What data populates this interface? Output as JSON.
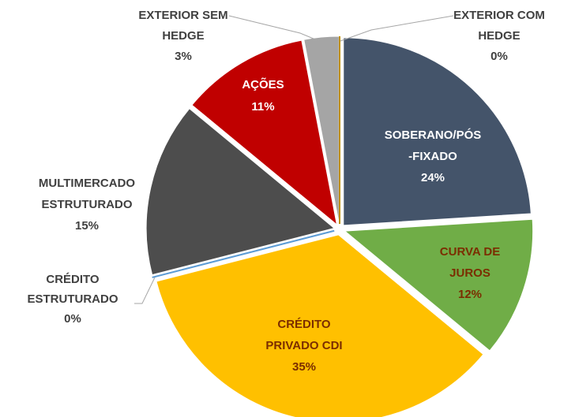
{
  "chart_data": {
    "type": "pie",
    "categories": [
      [
        "SOBERANO/PÓS",
        "-FIXADO"
      ],
      [
        "CURVA DE",
        "JUROS"
      ],
      [
        "CRÉDITO",
        "PRIVADO CDI"
      ],
      [
        "CRÉDITO",
        "ESTRUTURADO"
      ],
      [
        "MULTIMERCADO",
        "ESTRUTURADO"
      ],
      [
        "AÇÕES"
      ],
      [
        "EXTERIOR SEM",
        "HEDGE"
      ],
      [
        "EXTERIOR COM",
        "HEDGE"
      ]
    ],
    "values": [
      24,
      12,
      35,
      0,
      15,
      11,
      3,
      0
    ],
    "value_labels": [
      "24%",
      "12%",
      "35%",
      "0%",
      "15%",
      "11%",
      "3%",
      "0%"
    ],
    "colors": [
      "#44546a",
      "#70ad47",
      "#ffc000",
      "#5b9bd5",
      "#4d4d4d",
      "#c00000",
      "#a5a5a5",
      "#bf9000"
    ]
  }
}
